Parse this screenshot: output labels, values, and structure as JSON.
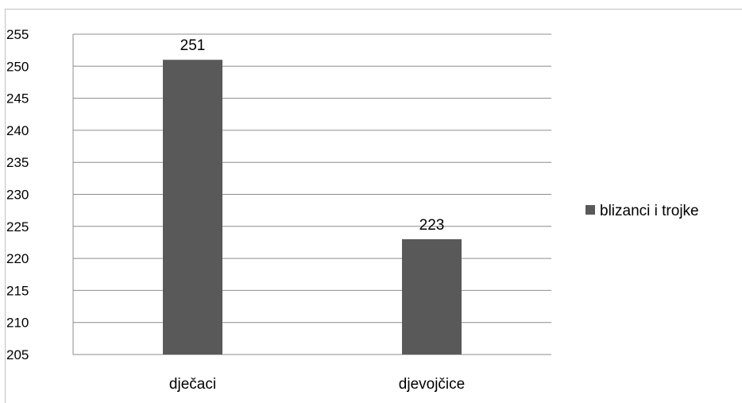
{
  "chart_data": {
    "type": "bar",
    "categories": [
      "dječaci",
      "djevojčice"
    ],
    "series": [
      {
        "name": "blizanci i trojke",
        "values": [
          251,
          223
        ],
        "color": "#595959"
      }
    ],
    "data_labels": [
      "251",
      "223"
    ],
    "ylim": [
      205,
      255
    ],
    "yticks": [
      205,
      210,
      215,
      220,
      225,
      230,
      235,
      240,
      245,
      250,
      255
    ],
    "title": "",
    "xlabel": "",
    "ylabel": "",
    "grid": true,
    "legend_position": "right",
    "colors": {
      "bar": "#595959",
      "grid": "#8c8c8c",
      "frame": "#bfbfbf"
    }
  }
}
